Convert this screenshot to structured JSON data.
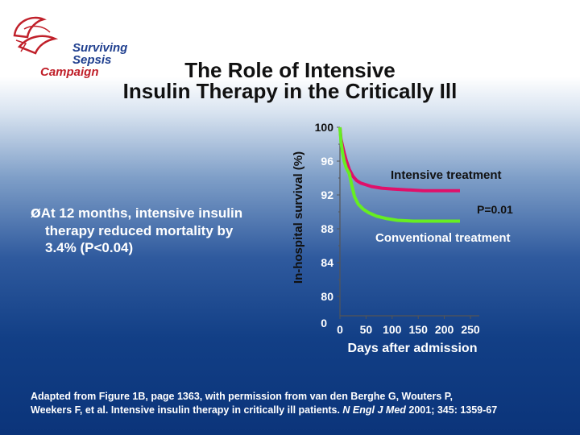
{
  "logo": {
    "line1": "Surviving",
    "line2": "Sepsis",
    "line3": "Campaign"
  },
  "title": {
    "line1": "The Role of Intensive",
    "line2": "Insulin Therapy in the Critically Ill"
  },
  "bullet": {
    "line1": "At 12 months, intensive insulin",
    "line2": "therapy reduced mortality by",
    "line3": "3.4% (P<0.04)"
  },
  "citation": {
    "text1": "Adapted from Figure 1B, page 1363, with permission from van den Berghe G, Wouters P,",
    "text2": "Weekers F, et al. Intensive insulin therapy in critically ill patients.",
    "journal": "N Engl J Med",
    "ref": "2001; 345: 1359-67"
  },
  "chart_data": {
    "type": "line",
    "xlabel": "Days after admission",
    "ylabel": "In-hospital survival (%)",
    "xlim": [
      0,
      250
    ],
    "ylim": [
      80,
      100
    ],
    "x_ticks": [
      "0",
      "50",
      "100",
      "150",
      "200",
      "250"
    ],
    "y_ticks": [
      "100",
      "96",
      "92",
      "88",
      "84",
      "80"
    ],
    "y_zero_label": "0",
    "series": [
      {
        "name": "Intensive treatment",
        "color": "#e0106a",
        "x": [
          0,
          2,
          5,
          8,
          12,
          18,
          25,
          32,
          40,
          50,
          60,
          80,
          100,
          130,
          160,
          200,
          230
        ],
        "y": [
          100,
          98.6,
          97.8,
          97.0,
          96.1,
          95.0,
          94.2,
          93.7,
          93.4,
          93.2,
          93.0,
          92.8,
          92.7,
          92.6,
          92.5,
          92.5,
          92.5
        ]
      },
      {
        "name": "Conventional treatment",
        "color": "#66ee22",
        "x": [
          0,
          2,
          5,
          8,
          12,
          18,
          22,
          28,
          35,
          45,
          55,
          70,
          90,
          110,
          140,
          170,
          200,
          230
        ],
        "y": [
          100,
          98.3,
          97.0,
          96.0,
          95.2,
          94.5,
          93.3,
          91.8,
          90.9,
          90.3,
          89.9,
          89.5,
          89.2,
          89.0,
          88.9,
          88.9,
          88.9,
          88.9
        ]
      }
    ],
    "annotations": {
      "intensive_label": "Intensive treatment",
      "p_value": "P=0.01",
      "conventional_label": "Conventional treatment"
    }
  }
}
